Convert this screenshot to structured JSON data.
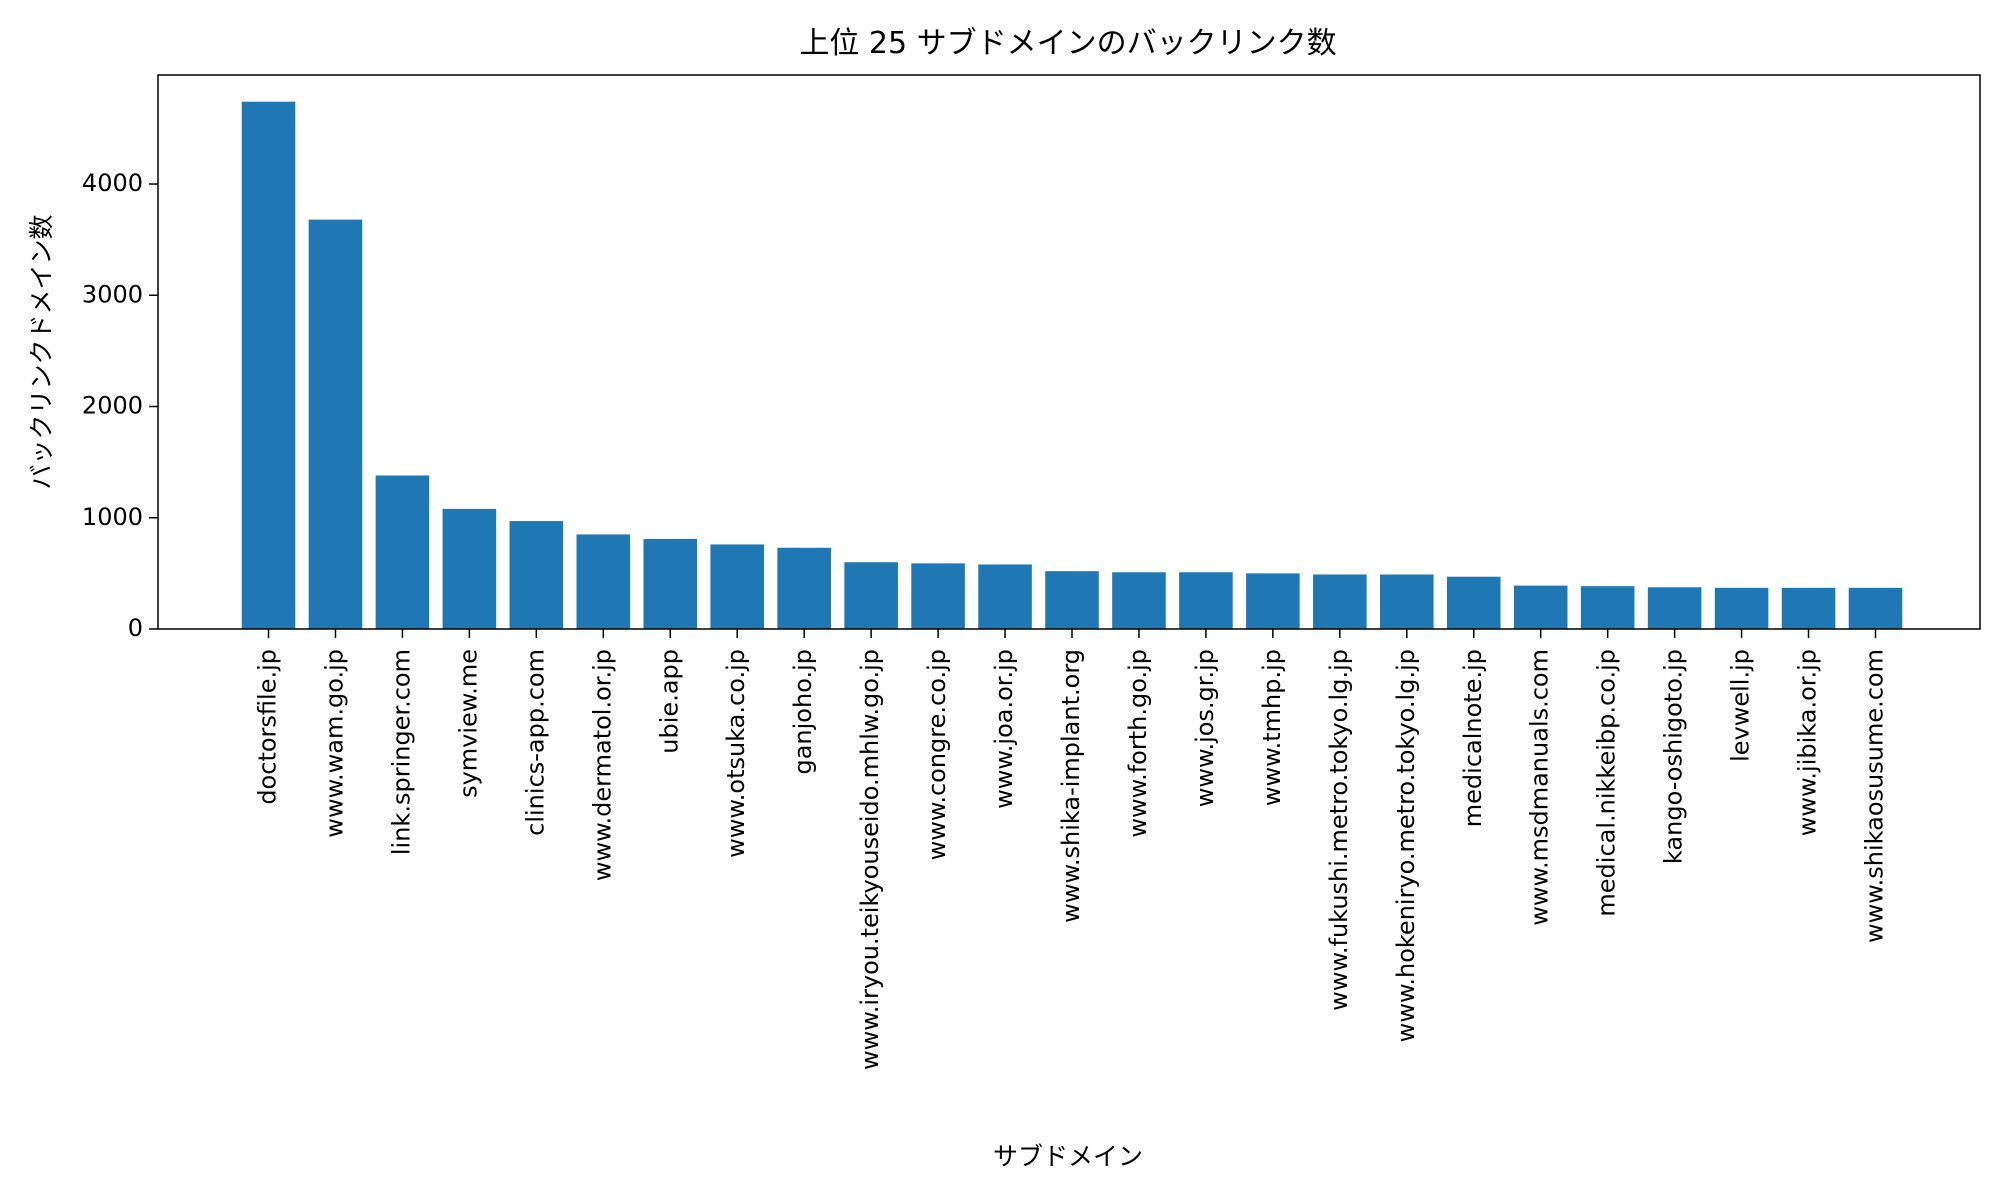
{
  "chart_data": {
    "type": "bar",
    "title": "上位 25 サブドメインのバックリンク数",
    "xlabel": "サブドメイン",
    "ylabel": "バックリンクドメイン数",
    "ylim": [
      0,
      4980
    ],
    "yticks": [
      0,
      1000,
      2000,
      3000,
      4000
    ],
    "grid": false,
    "bar_color": "#1f77b4",
    "categories": [
      "doctorsfile.jp",
      "www.wam.go.jp",
      "link.springer.com",
      "symview.me",
      "clinics-app.com",
      "www.dermatol.or.jp",
      "ubie.app",
      "www.otsuka.co.jp",
      "ganjoho.jp",
      "www.iryou.teikyouseido.mhlw.go.jp",
      "www.congre.co.jp",
      "www.joa.or.jp",
      "www.shika-implant.org",
      "www.forth.go.jp",
      "www.jos.gr.jp",
      "www.tmhp.jp",
      "www.fukushi.metro.tokyo.lg.jp",
      "www.hokeniryo.metro.tokyo.lg.jp",
      "medicalnote.jp",
      "www.msdmanuals.com",
      "medical.nikkeibp.co.jp",
      "kango-oshigoto.jp",
      "levwell.jp",
      "www.jibika.or.jp",
      "www.shikaosusume.com"
    ],
    "values": [
      4740,
      3680,
      1380,
      1080,
      970,
      850,
      810,
      760,
      730,
      600,
      590,
      580,
      520,
      510,
      510,
      500,
      490,
      490,
      470,
      390,
      385,
      375,
      370,
      370,
      370
    ]
  }
}
